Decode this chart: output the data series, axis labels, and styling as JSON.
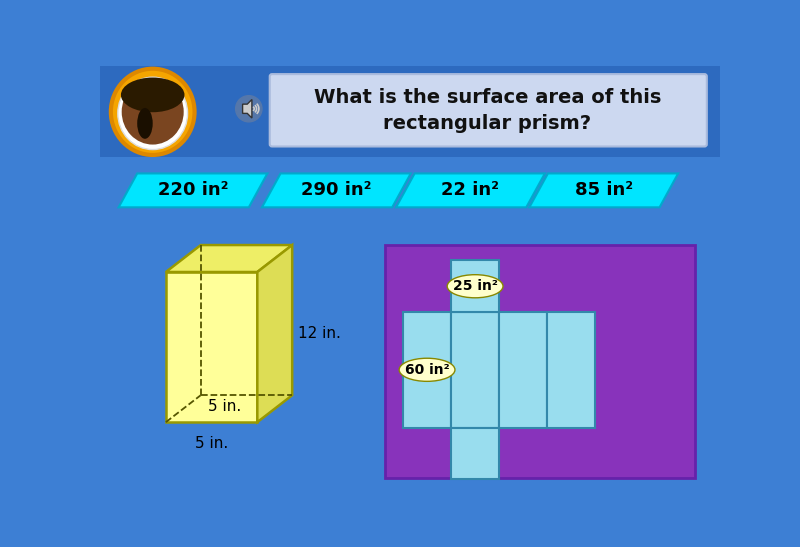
{
  "bg_color": "#3d7fd4",
  "header_bg": "#2d6abf",
  "title_text": "What is the surface area of this\nrectangular prism?",
  "title_box_color": "#ccd8f0",
  "answer_choices": [
    "220 in²",
    "290 in²",
    "22 in²",
    "85 in²"
  ],
  "answer_color": "#00e5ff",
  "answer_edge_color": "#00aacc",
  "answer_text_color": "#000000",
  "prism_front": "#ffff99",
  "prism_top": "#eeee66",
  "prism_right": "#dddd55",
  "prism_edge": "#999900",
  "net_bg_color": "#8833bb",
  "net_face_color": "#99ddee",
  "net_face_edge": "#3388aa",
  "dim_label_12": "12 in.",
  "dim_label_5a": "5 in.",
  "dim_label_5b": "5 in.",
  "area_25": "25 in²",
  "area_60": "60 in²",
  "ellipse_color": "#ffffcc"
}
